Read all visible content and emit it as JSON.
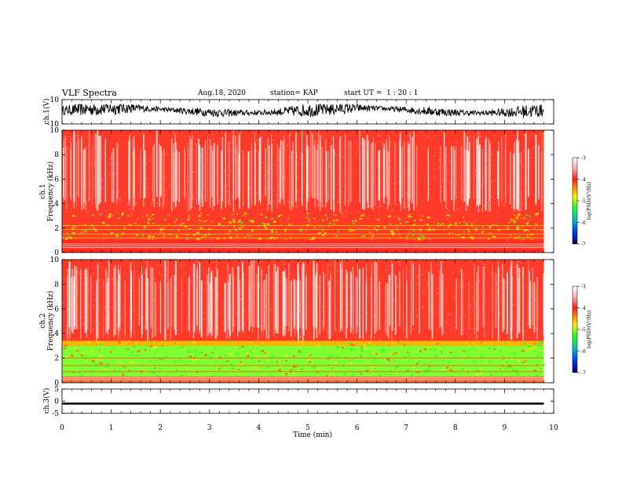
{
  "header": {
    "title": "VLF Spectra",
    "date": "Aug.18, 2020",
    "station": "station= KAP",
    "start_ut": "start UT =  1 : 20 : 1"
  },
  "chart_data": [
    {
      "type": "line",
      "panel": "ch1-waveform",
      "ylabel": "ch.1(V)",
      "ylim": [
        -10,
        10
      ],
      "yticks": [
        "10",
        "-10"
      ],
      "xlim": [
        0,
        10
      ],
      "description_series": "dense waveform amplitude, clipped near ±6 V"
    },
    {
      "type": "heatmap",
      "panel": "ch1-spectrogram",
      "ylabel_top": "ch.1",
      "ylabel": "Frequency (kHz)",
      "ylim": [
        0,
        10
      ],
      "yticks": [
        "0",
        "2",
        "4",
        "6",
        "8",
        "10"
      ],
      "xlim": [
        0,
        9.8
      ],
      "colorbar": {
        "label": "log(PSD)(V²/Hz)",
        "ticks": [
          "-3",
          "-4",
          "-5",
          "-6",
          "-7"
        ],
        "range": [
          -7,
          -3
        ]
      },
      "bands_khz": {
        "low_cut": 1.0,
        "green_top": 2.8,
        "yellow_top": 3.3
      }
    },
    {
      "type": "heatmap",
      "panel": "ch2-spectrogram",
      "ylabel_top": "ch.2",
      "ylabel": "Frequency (kHz)",
      "ylim": [
        0,
        10
      ],
      "yticks": [
        "0",
        "2",
        "4",
        "6",
        "8",
        "10"
      ],
      "xlim": [
        0,
        9.8
      ],
      "colorbar": {
        "label": "log(PSD)(V²/Hz)",
        "ticks": [
          "-3",
          "-4",
          "-5",
          "-6",
          "-7"
        ],
        "range": [
          -7,
          -3
        ]
      },
      "bands_khz": {
        "green_bottom": 0.5,
        "green_top": 3.0,
        "yellow_top": 3.4
      }
    },
    {
      "type": "line",
      "panel": "ch3-waveform",
      "ylabel": "ch.3(V)",
      "ylim": [
        -5,
        5
      ],
      "yticks": [
        "5",
        "0",
        "-5"
      ],
      "xlim": [
        0,
        10
      ],
      "xlabel": "Time (min)",
      "xticks": [
        "0",
        "1",
        "2",
        "3",
        "4",
        "5",
        "6",
        "7",
        "8",
        "9",
        "10"
      ],
      "level": -1.0
    }
  ],
  "colors": {
    "red": "#ff2a1a",
    "yellow": "#ffe600",
    "green": "#2aff2a",
    "trace": "#000000"
  }
}
